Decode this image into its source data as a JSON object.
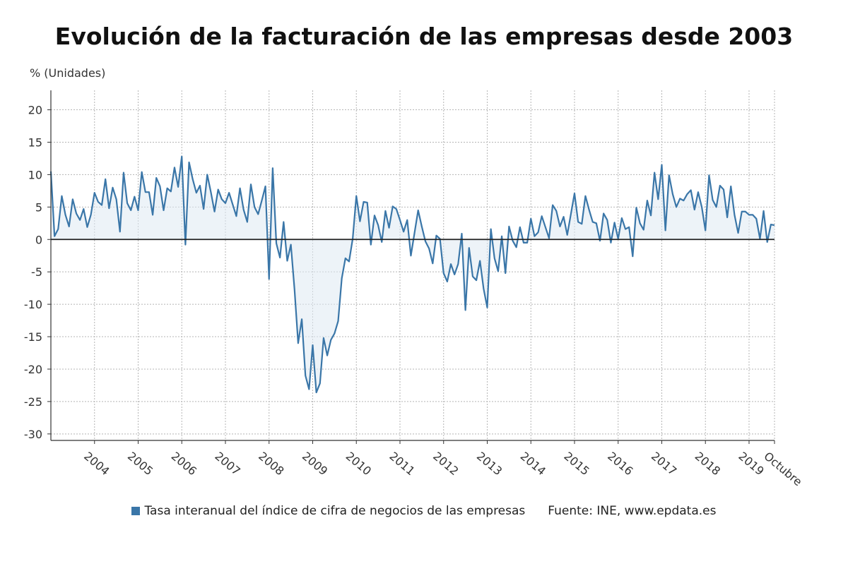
{
  "chart_data": {
    "type": "area",
    "title": "Evolución de la facturación de las empresas desde 2003",
    "ylabel": "% (Unidades)",
    "ylim": [
      -31,
      23
    ],
    "yticks": [
      20,
      15,
      10,
      5,
      0,
      -5,
      -10,
      -15,
      -20,
      -25,
      -30
    ],
    "xticks": [
      {
        "label": "2004",
        "month": 12
      },
      {
        "label": "2005",
        "month": 24
      },
      {
        "label": "2006",
        "month": 36
      },
      {
        "label": "2007",
        "month": 48
      },
      {
        "label": "2008",
        "month": 60
      },
      {
        "label": "2009",
        "month": 72
      },
      {
        "label": "2010",
        "month": 84
      },
      {
        "label": "2011",
        "month": 96
      },
      {
        "label": "2012",
        "month": 108
      },
      {
        "label": "2013",
        "month": 120
      },
      {
        "label": "2014",
        "month": 132
      },
      {
        "label": "2015",
        "month": 144
      },
      {
        "label": "2016",
        "month": 156
      },
      {
        "label": "2017",
        "month": 168
      },
      {
        "label": "2018",
        "month": 180
      },
      {
        "label": "2019",
        "month": 192
      },
      {
        "label": "Octubre",
        "month": 202
      }
    ],
    "grid": true,
    "legend_position": "bottom",
    "series": [
      {
        "name": "Tasa interanual del índice de cifra de negocios de las empresas",
        "color": "#3a76a8",
        "values": [
          10.5,
          0.5,
          1.6,
          6.7,
          3.8,
          2.0,
          6.2,
          4.0,
          3.0,
          4.7,
          1.9,
          3.8,
          7.2,
          5.8,
          5.3,
          9.3,
          4.8,
          8.0,
          6.2,
          1.2,
          10.3,
          5.6,
          4.5,
          6.6,
          4.5,
          10.4,
          7.3,
          7.3,
          3.8,
          9.5,
          8.2,
          4.5,
          7.9,
          7.4,
          11.1,
          8.1,
          12.8,
          -0.8,
          11.9,
          9.3,
          7.2,
          8.3,
          4.7,
          10.0,
          7.3,
          4.3,
          7.7,
          6.2,
          5.6,
          7.2,
          5.4,
          3.6,
          7.9,
          4.6,
          2.7,
          8.5,
          5.0,
          3.9,
          6.0,
          8.2,
          -6.1,
          11.0,
          -0.6,
          -2.8,
          2.7,
          -3.3,
          -0.8,
          -7.7,
          -16.0,
          -12.3,
          -21.0,
          -23.1,
          -16.3,
          -23.6,
          -22.2,
          -15.2,
          -17.9,
          -15.5,
          -14.5,
          -12.6,
          -6.0,
          -2.9,
          -3.4,
          0.1,
          6.7,
          2.8,
          5.8,
          5.7,
          -0.8,
          3.7,
          2.2,
          -0.4,
          4.4,
          1.8,
          5.1,
          4.7,
          3.0,
          1.2,
          3.0,
          -2.5,
          1.0,
          4.5,
          2.0,
          -0.3,
          -1.4,
          -3.7,
          0.6,
          0.1,
          -5.2,
          -6.5,
          -3.8,
          -5.4,
          -3.8,
          0.9,
          -10.9,
          -1.3,
          -5.7,
          -6.3,
          -3.3,
          -7.6,
          -10.5,
          1.6,
          -2.9,
          -4.9,
          0.5,
          -5.2,
          2.0,
          -0.2,
          -1.2,
          1.9,
          -0.5,
          -0.5,
          3.2,
          0.5,
          1.1,
          3.6,
          1.9,
          0.2,
          5.3,
          4.4,
          2.0,
          3.5,
          0.7,
          3.9,
          7.1,
          2.7,
          2.4,
          6.7,
          4.6,
          2.7,
          2.5,
          -0.2,
          4.0,
          3.0,
          -0.5,
          2.6,
          0.1,
          3.3,
          1.6,
          1.9,
          -2.6,
          4.9,
          2.5,
          1.5,
          6.0,
          3.7,
          10.3,
          6.2,
          11.5,
          1.4,
          9.9,
          7.0,
          5.0,
          6.3,
          6.0,
          7.0,
          7.6,
          4.6,
          7.3,
          5.0,
          1.4,
          9.9,
          6.1,
          5.0,
          8.3,
          7.7,
          3.4,
          8.2,
          3.8,
          1.0,
          4.3,
          4.3,
          3.8,
          3.8,
          3.2,
          0.1,
          4.4,
          -0.4,
          2.3,
          2.2
        ]
      }
    ]
  },
  "legend": {
    "series_label": "Tasa interanual del índice de cifra de negocios de las empresas",
    "source": "Fuente: INE, www.epdata.es"
  }
}
